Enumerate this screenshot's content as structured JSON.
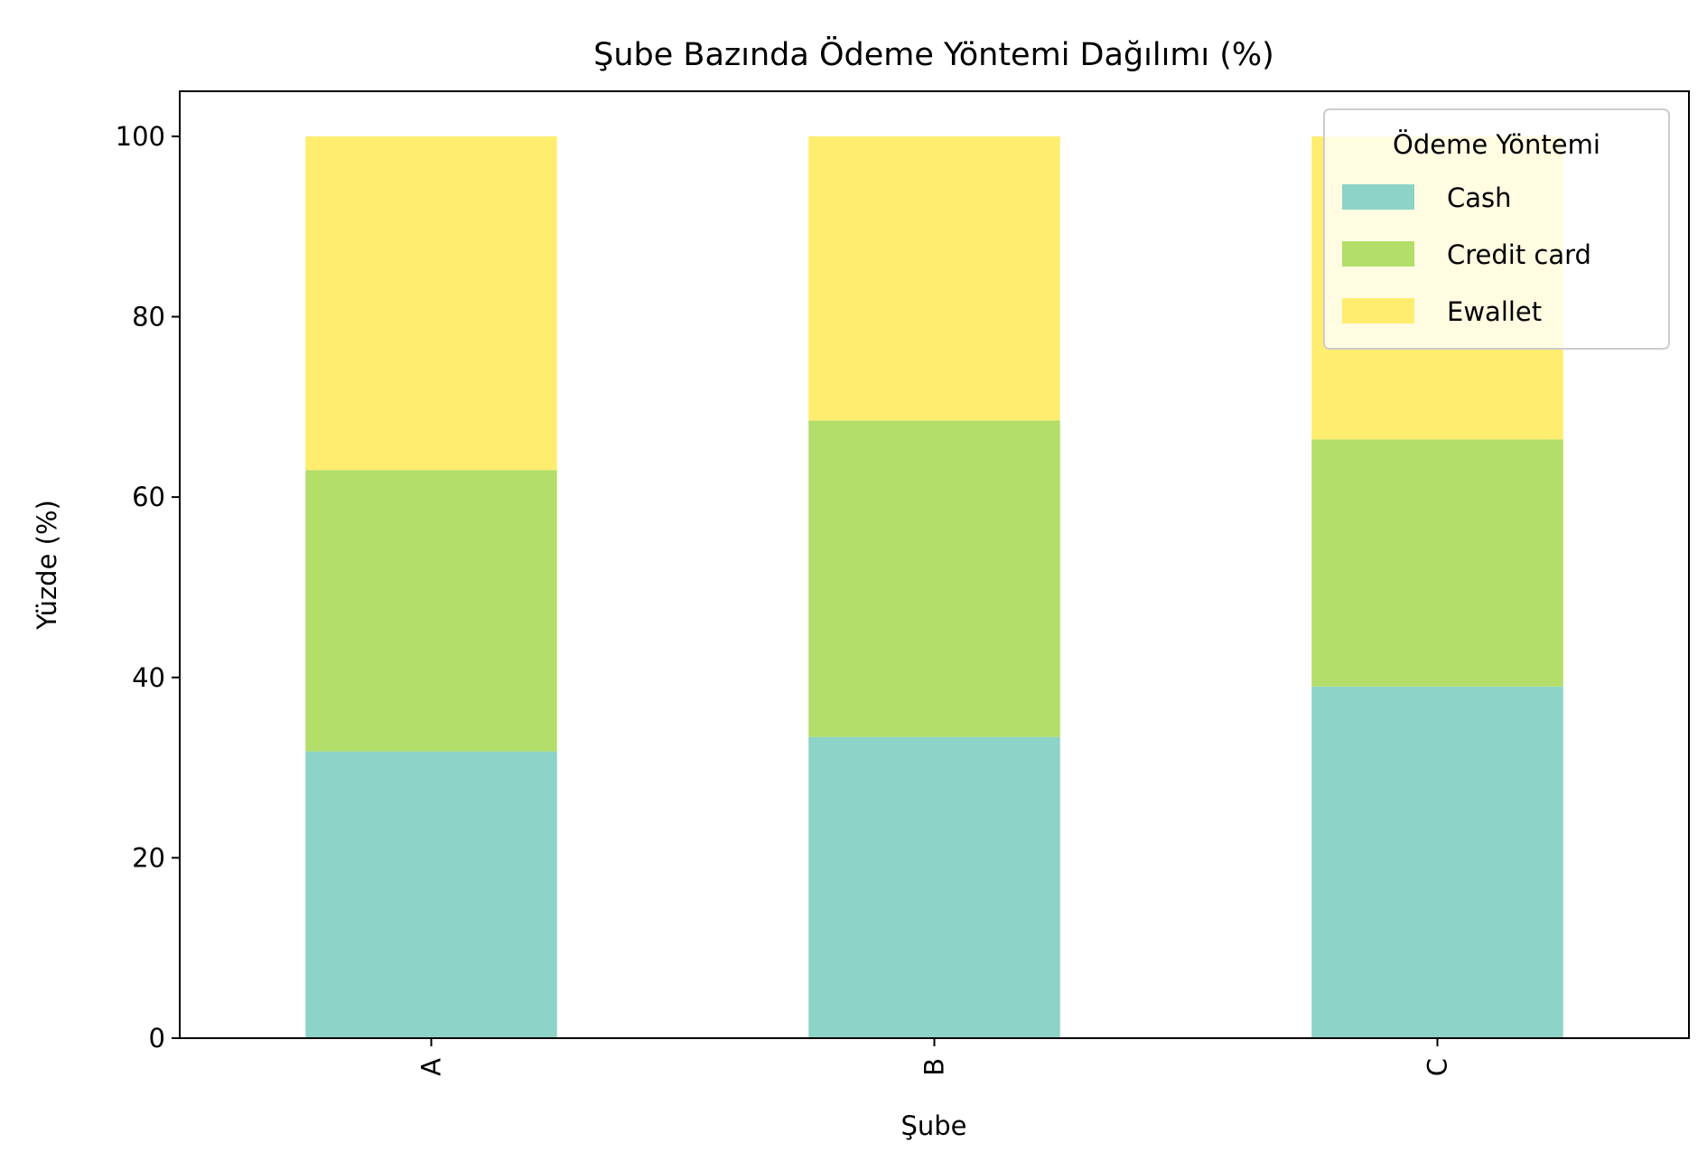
{
  "chart_data": {
    "type": "bar",
    "stacked": true,
    "title": "Şube Bazında Ödeme Yöntemi Dağılımı (%)",
    "xlabel": "Şube",
    "ylabel": "Yüzde (%)",
    "categories": [
      "A",
      "B",
      "C"
    ],
    "ylim": [
      0,
      105
    ],
    "yticks": [
      0,
      20,
      40,
      60,
      80,
      100
    ],
    "grid": false,
    "legend": {
      "title": "Ödeme Yöntemi",
      "position": "top-right"
    },
    "series": [
      {
        "name": "Cash",
        "color": "#8dd3c7",
        "values": [
          31.8,
          33.4,
          39.0
        ]
      },
      {
        "name": "Credit card",
        "color": "#b3de69",
        "values": [
          31.2,
          35.1,
          27.4
        ]
      },
      {
        "name": "Ewallet",
        "color": "#ffed6f",
        "values": [
          37.0,
          31.5,
          33.6
        ]
      }
    ]
  }
}
